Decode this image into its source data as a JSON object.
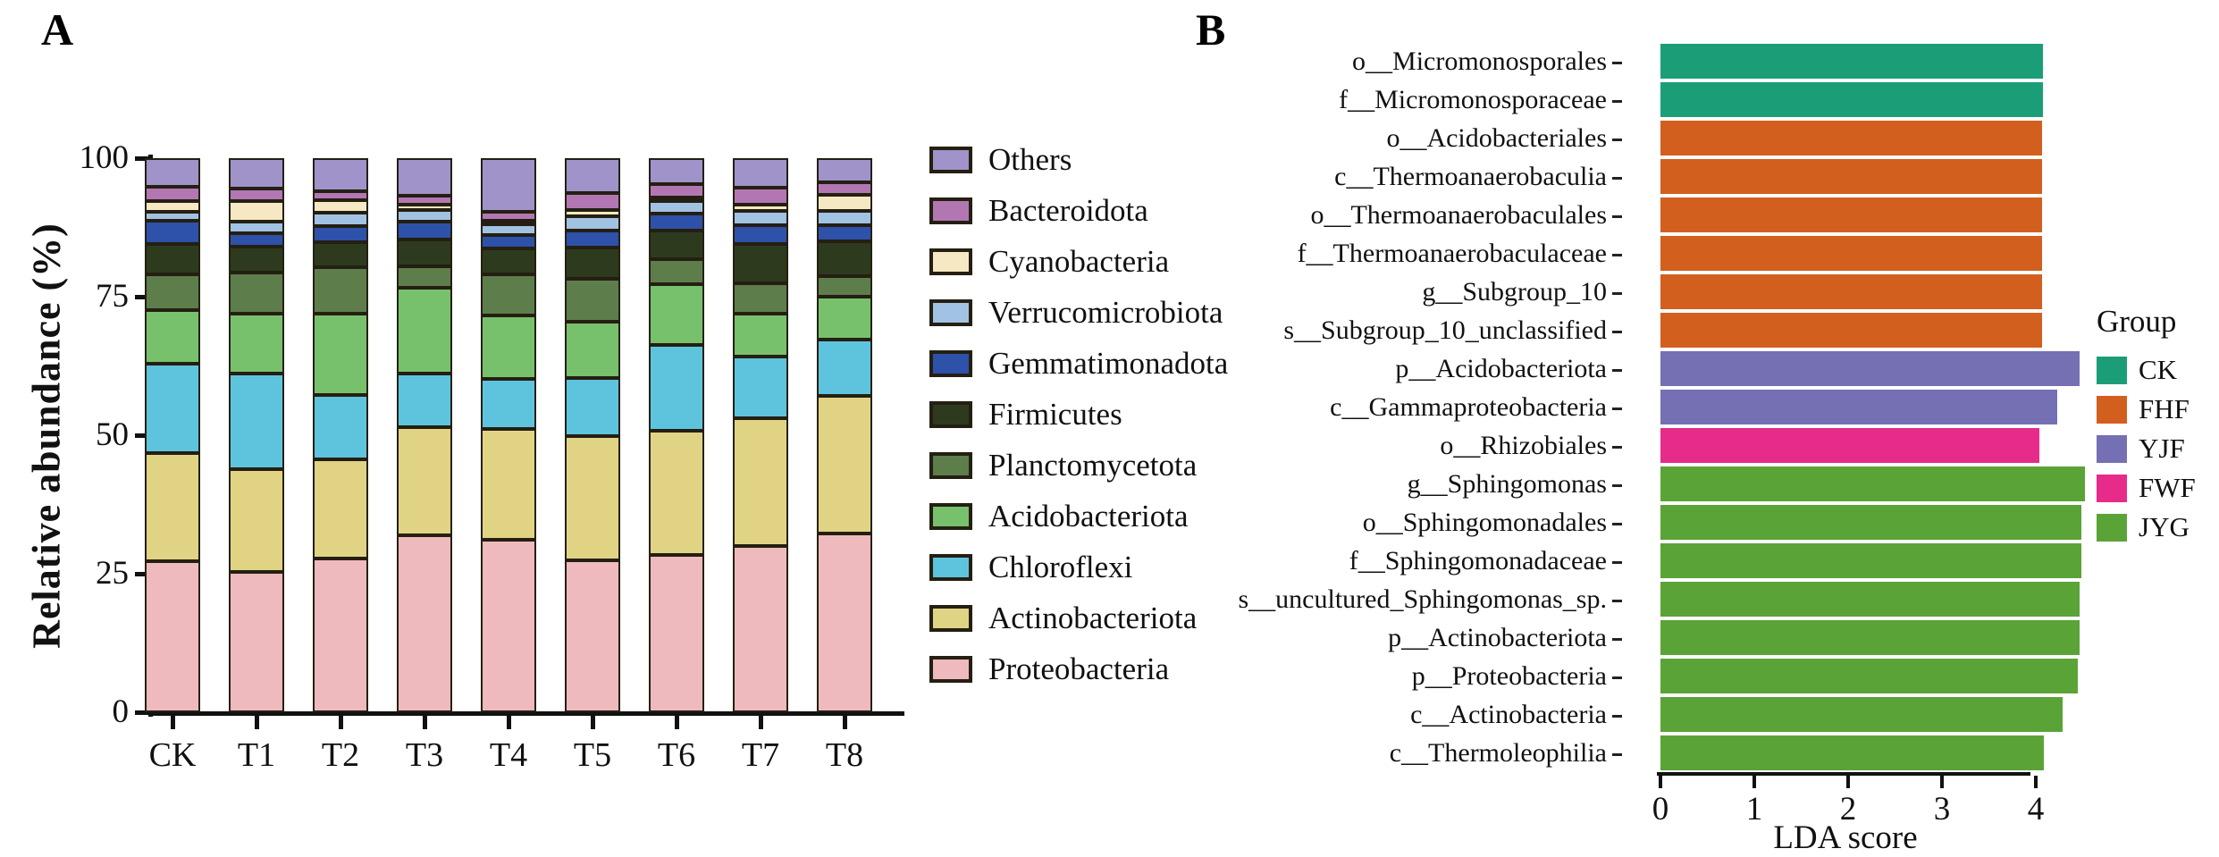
{
  "panel_a": {
    "label": "A",
    "y_axis_label": "Relative abundance (%)"
  },
  "panel_b": {
    "label": "B",
    "x_axis_label": "LDA score",
    "legend_title": "Group"
  },
  "chart_data": [
    {
      "id": "relative-abundance-stacked-bars",
      "type": "bar",
      "stacked": true,
      "orientation": "vertical",
      "ylabel": "Relative abundance (%)",
      "ylim": [
        0,
        100
      ],
      "y_ticks": [
        0,
        25,
        50,
        75,
        100
      ],
      "grid": false,
      "legend_position": "right",
      "categories": [
        "CK",
        "T1",
        "T2",
        "T3",
        "T4",
        "T5",
        "T6",
        "T7",
        "T8"
      ],
      "series": [
        {
          "name": "Proteobacteria",
          "color": "#efbabd",
          "values": [
            27.2,
            25.4,
            27.8,
            31.9,
            31.2,
            27.5,
            28.4,
            30.0,
            32.2
          ]
        },
        {
          "name": "Actinobacteriota",
          "color": "#e0d484",
          "values": [
            19.6,
            18.4,
            17.9,
            19.6,
            20.0,
            22.3,
            22.5,
            23.0,
            24.9
          ]
        },
        {
          "name": "Chloroflexi",
          "color": "#5ec4de",
          "values": [
            16.1,
            17.3,
            11.5,
            9.7,
            9.0,
            10.5,
            15.5,
            11.2,
            10.2
          ]
        },
        {
          "name": "Acidobacteriota",
          "color": "#78c16c",
          "values": [
            9.7,
            10.9,
            14.7,
            15.4,
            11.5,
            10.2,
            11.0,
            7.7,
            7.7
          ]
        },
        {
          "name": "Planctomycetota",
          "color": "#5d7d4b",
          "values": [
            6.4,
            7.4,
            8.5,
            3.9,
            7.4,
            7.8,
            4.5,
            5.6,
            3.7
          ]
        },
        {
          "name": "Firmicutes",
          "color": "#2d3a1e",
          "values": [
            5.5,
            4.7,
            4.4,
            4.9,
            4.7,
            5.5,
            5.2,
            7.0,
            6.3
          ]
        },
        {
          "name": "Gemmatimonadota",
          "color": "#2e51a9",
          "values": [
            4.2,
            2.4,
            3.0,
            3.1,
            2.4,
            3.1,
            3.0,
            3.4,
            2.9
          ]
        },
        {
          "name": "Verrucomicrobiota",
          "color": "#a2c2e4",
          "values": [
            1.6,
            2.0,
            2.3,
            2.2,
            1.9,
            2.7,
            2.3,
            2.6,
            2.6
          ]
        },
        {
          "name": "Cyanobacteria",
          "color": "#f6e8c2",
          "values": [
            1.9,
            3.7,
            2.4,
            1.0,
            0.6,
            1.0,
            0.5,
            1.1,
            2.9
          ]
        },
        {
          "name": "Bacteroidota",
          "color": "#b277b2",
          "values": [
            2.6,
            2.4,
            1.5,
            1.6,
            1.6,
            3.1,
            2.4,
            3.1,
            2.3
          ]
        },
        {
          "name": "Others",
          "color": "#9f93c9",
          "values": [
            5.2,
            5.4,
            6.0,
            6.7,
            9.7,
            6.3,
            4.7,
            5.3,
            4.3
          ]
        }
      ],
      "legend_order_top_to_bottom": [
        "Others",
        "Bacteroidota",
        "Cyanobacteria",
        "Verrucomicrobiota",
        "Gemmatimonadota",
        "Firmicutes",
        "Planctomycetota",
        "Acidobacteriota",
        "Chloroflexi",
        "Actinobacteriota",
        "Proteobacteria"
      ]
    },
    {
      "id": "lda-score-bars",
      "type": "bar",
      "orientation": "horizontal",
      "xlabel": "LDA score",
      "xlim": [
        0,
        4.6
      ],
      "x_ticks": [
        0,
        1,
        2,
        3,
        4
      ],
      "grid": false,
      "legend_title": "Group",
      "groups": [
        {
          "name": "CK",
          "color": "#1b9e77"
        },
        {
          "name": "FHF",
          "color": "#d35f1e"
        },
        {
          "name": "YJF",
          "color": "#7570b3"
        },
        {
          "name": "FWF",
          "color": "#e62b8a"
        },
        {
          "name": "JYG",
          "color": "#5aa337"
        }
      ],
      "bars": [
        {
          "label": "o__Micromonosporales",
          "group": "CK",
          "value": 4.08
        },
        {
          "label": "f__Micromonosporaceae",
          "group": "CK",
          "value": 4.08
        },
        {
          "label": "o__Acidobacteriales",
          "group": "FHF",
          "value": 4.07
        },
        {
          "label": "c__Thermoanaerobaculia",
          "group": "FHF",
          "value": 4.07
        },
        {
          "label": "o__Thermoanaerobaculales",
          "group": "FHF",
          "value": 4.07
        },
        {
          "label": "f__Thermoanaerobaculaceae",
          "group": "FHF",
          "value": 4.07
        },
        {
          "label": "g__Subgroup_10",
          "group": "FHF",
          "value": 4.07
        },
        {
          "label": "s__Subgroup_10_unclassified",
          "group": "FHF",
          "value": 4.07
        },
        {
          "label": "p__Acidobacteriota",
          "group": "YJF",
          "value": 4.47
        },
        {
          "label": "c__Gammaproteobacteria",
          "group": "YJF",
          "value": 4.23
        },
        {
          "label": "o__Rhizobiales",
          "group": "FWF",
          "value": 4.04
        },
        {
          "label": "g__Sphingomonas",
          "group": "JYG",
          "value": 4.52
        },
        {
          "label": "o__Sphingomonadales",
          "group": "JYG",
          "value": 4.49
        },
        {
          "label": "f__Sphingomonadaceae",
          "group": "JYG",
          "value": 4.49
        },
        {
          "label": "s__uncultured_Sphingomonas_sp.",
          "group": "JYG",
          "value": 4.47
        },
        {
          "label": "p__Actinobacteriota",
          "group": "JYG",
          "value": 4.47
        },
        {
          "label": "p__Proteobacteria",
          "group": "JYG",
          "value": 4.45
        },
        {
          "label": "c__Actinobacteria",
          "group": "JYG",
          "value": 4.29
        },
        {
          "label": "c__Thermoleophilia",
          "group": "JYG",
          "value": 4.09
        }
      ]
    }
  ]
}
